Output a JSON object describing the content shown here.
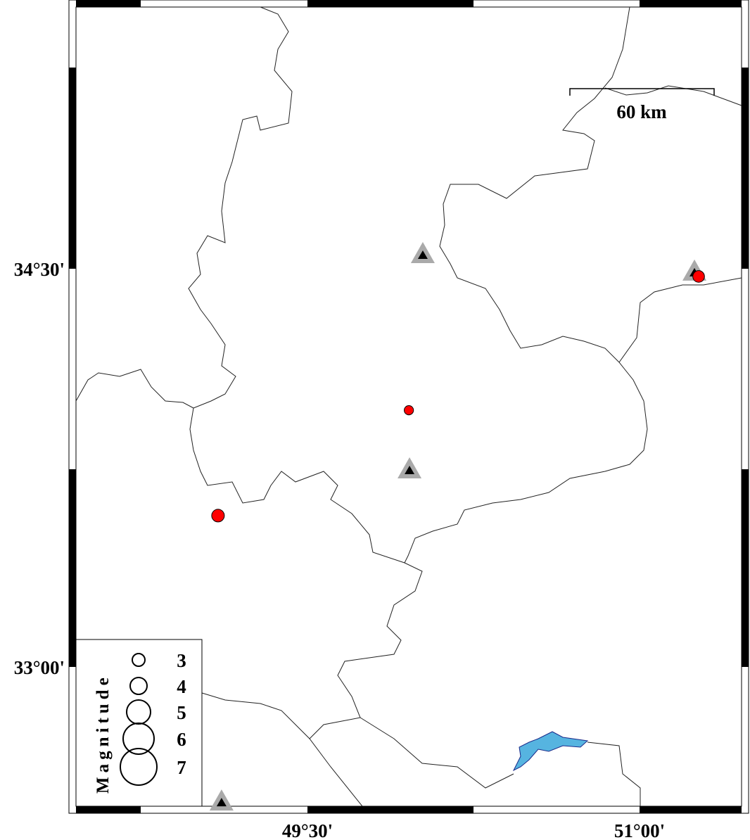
{
  "map": {
    "extent_labels": {
      "lat_ticks": [
        "34°30'",
        "33°00'"
      ],
      "lon_ticks": [
        "49°30'",
        "51°00'"
      ]
    },
    "lat_tick_values": [
      34.5,
      33.0
    ],
    "lon_tick_values": [
      49.5,
      51.0
    ],
    "scale_bar": {
      "label": "60 km",
      "length_km": 60
    },
    "colors": {
      "event": "#ff0000",
      "station_outer": "#aaaaaa",
      "station_inner": "#000000",
      "lake": "#56b4e0",
      "frame": "#000000"
    },
    "events": [
      {
        "lon": 51.267,
        "lat": 34.471,
        "mag": 2.2
      },
      {
        "lon": 49.958,
        "lat": 33.967,
        "mag": 1.5
      },
      {
        "lon": 49.096,
        "lat": 33.57,
        "mag": 2.5
      }
    ],
    "stations": [
      {
        "lon": 50.021,
        "lat": 34.553
      },
      {
        "lon": 51.248,
        "lat": 34.487
      },
      {
        "lon": 49.961,
        "lat": 33.742
      },
      {
        "lon": 49.112,
        "lat": 32.491
      }
    ]
  },
  "legend": {
    "title": "Magnitude",
    "entries": [
      {
        "label": "3",
        "mag": 3
      },
      {
        "label": "4",
        "mag": 4
      },
      {
        "label": "5",
        "mag": 5
      },
      {
        "label": "6",
        "mag": 6
      },
      {
        "label": "7",
        "mag": 7
      }
    ]
  }
}
